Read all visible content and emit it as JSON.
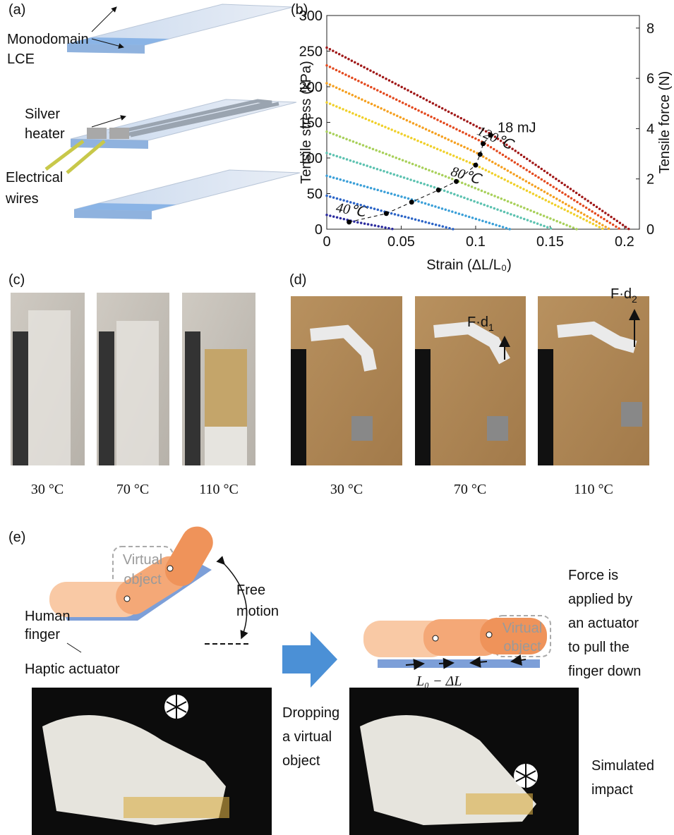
{
  "panels": {
    "a": {
      "label": "(a)",
      "callouts": [
        [
          "Monodomain",
          "LCE"
        ],
        [
          "Silver",
          "heater"
        ],
        [
          "Electrical",
          "wires"
        ]
      ]
    },
    "c": {
      "label": "(c)",
      "captions": [
        "30 °C",
        "70 °C",
        "110 °C"
      ]
    },
    "d": {
      "label": "(d)",
      "captions": [
        "30 °C",
        "70 °C",
        "110 °C"
      ],
      "forces": [
        {
          "base": "F·d",
          "sub": "1"
        },
        {
          "base": "F·d",
          "sub": "2"
        }
      ]
    },
    "e": {
      "label": "(e)",
      "left": {
        "virtual": [
          "Virtual",
          "object"
        ],
        "finger": [
          "Human",
          "finger"
        ],
        "motion": [
          "Free",
          "motion"
        ],
        "actuator": "Haptic actuator",
        "photo": [
          "Dropping",
          "a virtual",
          "object"
        ]
      },
      "right": {
        "virtual": [
          "Virtual",
          "object"
        ],
        "force": [
          "Force is",
          "applied by",
          "an actuator",
          "to pull the",
          "finger down"
        ],
        "length": "L₀ − ΔL",
        "photo": [
          "Simulated",
          "impact"
        ]
      }
    }
  },
  "chart_data": {
    "type": "line",
    "panel_label": "(b)",
    "xlabel": "Strain (ΔL/L₀)",
    "ylabel": "Tensile stress (kPa)",
    "y2label": "Tensile force (N)",
    "xlim": [
      0,
      0.21
    ],
    "xticks": [
      0,
      0.05,
      0.1,
      0.15,
      0.2
    ],
    "ylim": [
      0,
      300
    ],
    "yticks": [
      0,
      50,
      100,
      150,
      200,
      250,
      300
    ],
    "y2lim": [
      0,
      8.5
    ],
    "y2ticks": [
      0,
      2,
      4,
      6,
      8
    ],
    "series": [
      {
        "name": "40℃",
        "color": "#2b2b9e",
        "x": [
          0,
          0.02,
          0.045
        ],
        "values": [
          20,
          10,
          0
        ]
      },
      {
        "color": "#2a63c6",
        "x": [
          0,
          0.04,
          0.085
        ],
        "values": [
          47,
          24,
          0
        ]
      },
      {
        "color": "#3a9fd8",
        "x": [
          0,
          0.06,
          0.123
        ],
        "values": [
          75,
          40,
          0
        ]
      },
      {
        "color": "#5cc2b0",
        "x": [
          0,
          0.075,
          0.152
        ],
        "values": [
          107,
          57,
          0
        ]
      },
      {
        "name": "80℃",
        "color": "#a8d05a",
        "x": [
          0,
          0.085,
          0.168
        ],
        "values": [
          137,
          70,
          0
        ]
      },
      {
        "color": "#f0d02a",
        "x": [
          0,
          0.1,
          0.186
        ],
        "values": [
          178,
          90,
          0
        ]
      },
      {
        "color": "#f5a020",
        "x": [
          0,
          0.1,
          0.19
        ],
        "values": [
          205,
          108,
          0
        ]
      },
      {
        "color": "#e34a1f",
        "x": [
          0,
          0.105,
          0.197
        ],
        "values": [
          230,
          122,
          0
        ]
      },
      {
        "name": "120℃",
        "color": "#a01818",
        "x": [
          0,
          0.11,
          0.203
        ],
        "values": [
          255,
          134,
          0
        ]
      }
    ],
    "work_points": {
      "label": "18 mJ",
      "color": "#000000",
      "x": [
        0.015,
        0.04,
        0.057,
        0.075,
        0.087,
        0.1,
        0.103,
        0.105,
        0.11
      ],
      "values": [
        10,
        22,
        38,
        55,
        67,
        90,
        105,
        120,
        132
      ]
    }
  }
}
